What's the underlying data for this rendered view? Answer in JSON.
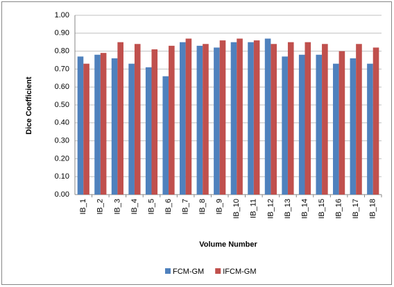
{
  "chart_data": {
    "type": "bar",
    "y_label": "Dice Coefficient",
    "x_label": "Volume Number",
    "categories": [
      "IB_1",
      "IB_2",
      "IB_3",
      "IB_4",
      "IB_5",
      "IB_6",
      "IB_7",
      "IB_8",
      "IB_9",
      "IB_10",
      "IB_11",
      "IB_12",
      "IB_13",
      "IB_14",
      "IB_15",
      "IB_16",
      "IB_17",
      "IB_18"
    ],
    "series": [
      {
        "name": "FCM-GM",
        "color": "#4f81bd",
        "values": [
          0.77,
          0.78,
          0.76,
          0.73,
          0.71,
          0.66,
          0.85,
          0.83,
          0.82,
          0.85,
          0.85,
          0.87,
          0.77,
          0.78,
          0.78,
          0.73,
          0.76,
          0.73
        ]
      },
      {
        "name": "IFCM-GM",
        "color": "#c0504d",
        "values": [
          0.73,
          0.79,
          0.85,
          0.84,
          0.81,
          0.83,
          0.87,
          0.84,
          0.86,
          0.87,
          0.86,
          0.84,
          0.85,
          0.85,
          0.84,
          0.8,
          0.84,
          0.82
        ]
      }
    ],
    "ylim": [
      0,
      1
    ],
    "yticks": [
      {
        "value": 0,
        "label": "0.00"
      },
      {
        "value": 0.1,
        "label": "0.10"
      },
      {
        "value": 0.2,
        "label": "0.20"
      },
      {
        "value": 0.3,
        "label": "0.30"
      },
      {
        "value": 0.4,
        "label": "0.40"
      },
      {
        "value": 0.5,
        "label": "0.50"
      },
      {
        "value": 0.6,
        "label": "0.60"
      },
      {
        "value": 0.7,
        "label": "0.70"
      },
      {
        "value": 0.8,
        "label": "0.80"
      },
      {
        "value": 0.9,
        "label": "0.90"
      },
      {
        "value": 1,
        "label": "1.00"
      }
    ],
    "grid": true,
    "legend": "bottom"
  }
}
